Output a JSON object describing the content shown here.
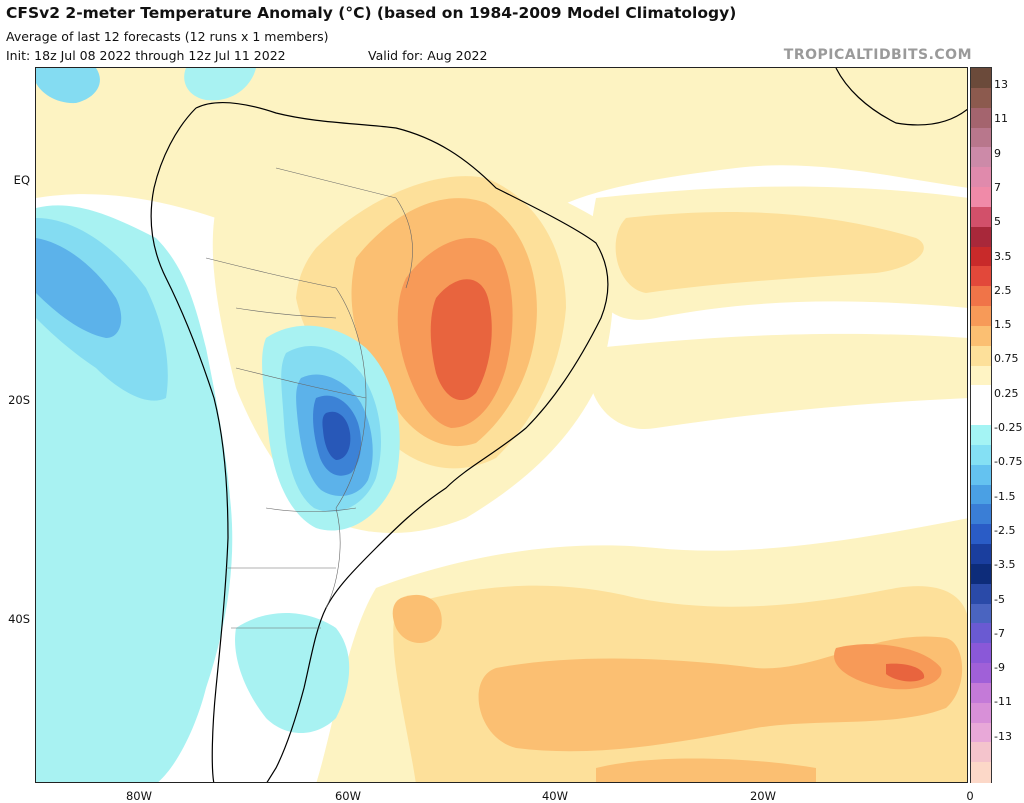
{
  "header": {
    "title": "CFSv2 2-meter Temperature Anomaly (°C) (based on 1984-2009 Model Climatology)",
    "subtitle": "Average of last 12 forecasts (12 runs x 1 members)",
    "init": "Init: 18z Jul 08 2022 through 12z Jul 11 2022",
    "valid": "Valid for: Aug 2022",
    "brand": "TROPICALTIDBITS.COM"
  },
  "axes": {
    "lat_labels": [
      "EQ",
      "20S",
      "40S"
    ],
    "lon_labels": [
      "80W",
      "60W",
      "40W",
      "20W",
      "0"
    ]
  },
  "colorbar": {
    "labels": [
      "13",
      "11",
      "9",
      "7",
      "5",
      "3.5",
      "2.5",
      "1.5",
      "0.75",
      "0.25",
      "-0.25",
      "-0.75",
      "-1.5",
      "-2.5",
      "-3.5",
      "-5",
      "-7",
      "-9",
      "-11",
      "-13"
    ],
    "colors": [
      "#6b4a3a",
      "#8c5a4e",
      "#a4646e",
      "#b8778c",
      "#cc8aa8",
      "#e08aac",
      "#f08aa8",
      "#d2506a",
      "#a8283a",
      "#c82a2a",
      "#e2483a",
      "#f07448",
      "#f79a58",
      "#fbbf72",
      "#fde09a",
      "#fff4c4",
      "#ffffff",
      "#ffffff",
      "#a4f4f4",
      "#84e0f4",
      "#64c2f0",
      "#4aa0e4",
      "#3a7ed6",
      "#2a5cc6",
      "#1a3e9e",
      "#0d2c7a",
      "#2a4aa8",
      "#4a64c0",
      "#6a5ad2",
      "#8a58d8",
      "#a060d8",
      "#c47ad8",
      "#d890d8",
      "#e8a8d8",
      "#f4c4cc",
      "#fcd8c8"
    ]
  },
  "colors": {
    "warm1": "#fdf3c2",
    "warm2": "#fde09a",
    "warm3": "#fbbf72",
    "warm4": "#f79a58",
    "warm5": "#e8643e",
    "cool1": "#a8f2f2",
    "cool2": "#84dcf2",
    "cool3": "#5cb2ea",
    "cool4": "#3c82d6",
    "cool5": "#2858b8"
  }
}
